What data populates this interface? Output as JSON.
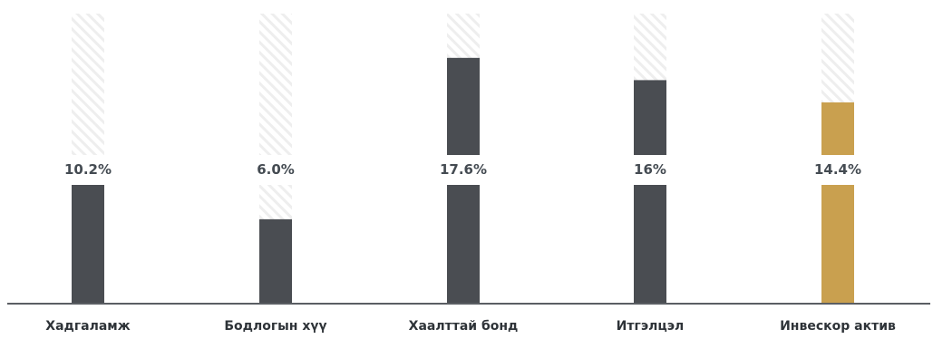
{
  "chart_data": {
    "type": "bar",
    "categories": [
      "Хадгаламж",
      "Бодлогын хүү",
      "Хаалттай бонд",
      "Итгэлцэл",
      "Инвескор актив"
    ],
    "values": [
      10.2,
      6.0,
      17.6,
      16,
      14.4
    ],
    "value_labels": [
      "10.2%",
      "6.0%",
      "17.6%",
      "16%",
      "14.4%"
    ],
    "ylim": [
      0,
      20
    ],
    "grid": false,
    "legend": "none",
    "colors": {
      "bar": "#4a4d52",
      "highlight_bar": "#c9a04f",
      "baseline": "#5a5e63",
      "label": "#444b52",
      "track_hatch": "#eeeeee"
    },
    "highlight_index": 4
  }
}
